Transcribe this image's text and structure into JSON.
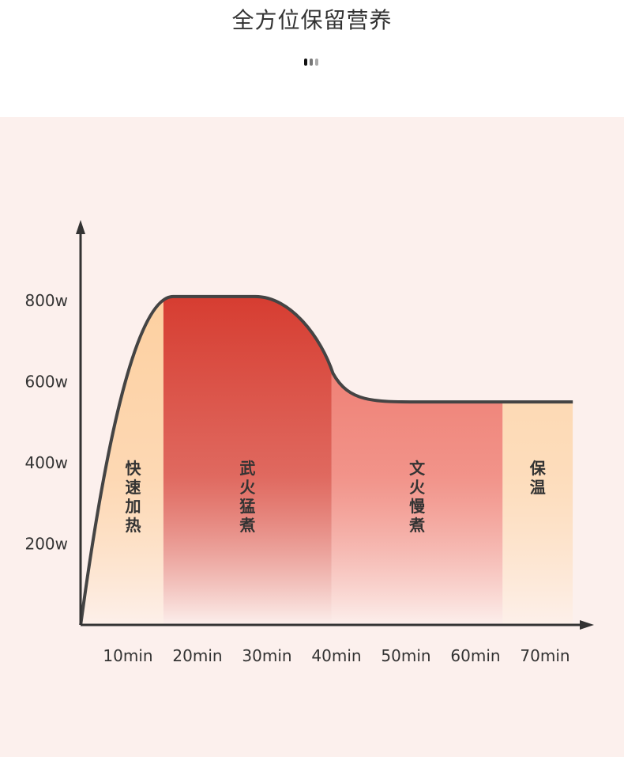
{
  "header": {
    "title": "全方位保留营养"
  },
  "pager": {
    "dot_colors": [
      "#111111",
      "#777777",
      "#aaaaaa"
    ]
  },
  "chart_data": {
    "type": "area",
    "title": "",
    "xlabel": "",
    "ylabel": "",
    "x_ticks": [
      "10min",
      "20min",
      "30min",
      "40min",
      "50min",
      "60min",
      "70min"
    ],
    "y_ticks": [
      "200w",
      "400w",
      "600w",
      "800w"
    ],
    "y_tick_values": [
      200,
      400,
      600,
      800
    ],
    "x_tick_values": [
      10,
      20,
      30,
      40,
      50,
      60,
      70
    ],
    "series": [
      {
        "points": [
          [
            3.2,
            0
          ],
          [
            16.5,
            810
          ],
          [
            31.5,
            810
          ],
          [
            39.5,
            630
          ],
          [
            52,
            550
          ],
          [
            74,
            550
          ]
        ]
      }
    ],
    "stages": [
      {
        "label": "快速加热",
        "start": 3.2,
        "end": 15.1,
        "color_top": "#fdd0a0",
        "color_bottom": "#fdf0ea"
      },
      {
        "label": "武火猛煮",
        "start": 15.1,
        "end": 39.3,
        "color_top": "#d63c30",
        "color_bottom": "#fcefec"
      },
      {
        "label": "文火慢煮",
        "start": 39.3,
        "end": 63.9,
        "color_top": "#ee7468",
        "color_bottom": "#fcefec"
      },
      {
        "label": "保温",
        "start": 63.9,
        "end": 74,
        "color_top": "#fdd6ab",
        "color_bottom": "#fdf0ea"
      }
    ],
    "line_color": "#444444",
    "grid": false
  }
}
